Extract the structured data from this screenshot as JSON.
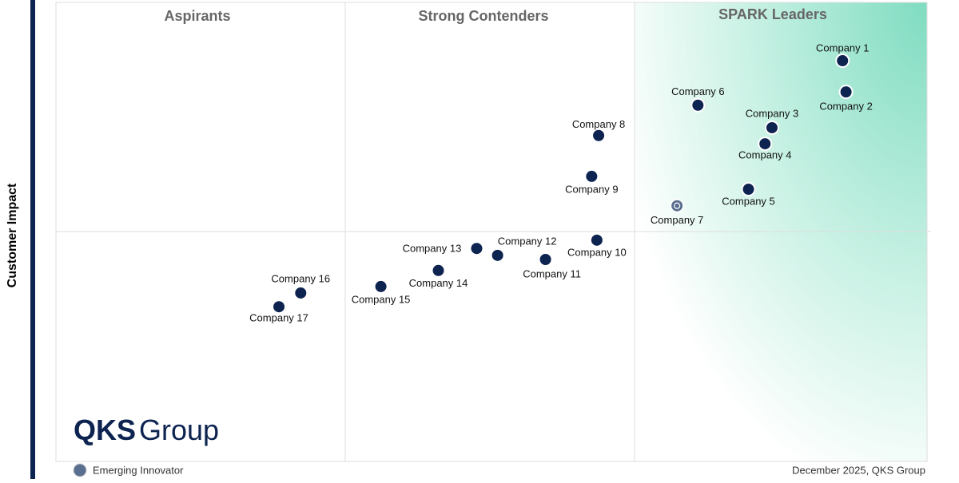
{
  "chart_data": {
    "type": "scatter",
    "quadrant_titles": [
      "Aspirants",
      "Strong Contenders",
      "SPARK Leaders"
    ],
    "y_label": "Customer Impact",
    "xlim": [
      0,
      100
    ],
    "ylim": [
      0,
      100
    ],
    "points": {
      "labels": [
        "Company 1",
        "Company 2",
        "Company 3",
        "Company 4",
        "Company 5",
        "Company 6",
        "Company 7",
        "Company 8",
        "Company 9",
        "Company 10",
        "Company 11",
        "Company 12",
        "Company 13",
        "Company 14",
        "Company 15",
        "Company 16",
        "Company 17"
      ],
      "x": [
        90.3,
        90.7,
        82.2,
        81.4,
        79.5,
        73.7,
        71.3,
        62.3,
        61.5,
        62.1,
        56.2,
        50.7,
        48.3,
        43.9,
        37.3,
        28.1,
        25.6
      ],
      "y": [
        87.3,
        80.5,
        72.7,
        69.2,
        59.3,
        77.6,
        55.7,
        71.0,
        62.1,
        48.2,
        44.0,
        44.9,
        46.4,
        41.6,
        38.1,
        36.7,
        33.7
      ],
      "emerging_innovator": [
        false,
        false,
        false,
        false,
        false,
        false,
        true,
        false,
        false,
        false,
        false,
        false,
        false,
        false,
        false,
        false,
        false
      ],
      "color": "#0d2350",
      "innovator_color": "#5a6f8f"
    },
    "legend": "Emerging Innovator",
    "footer": "December 2025, QKS Group",
    "logo": [
      "QKS",
      "Group"
    ]
  }
}
